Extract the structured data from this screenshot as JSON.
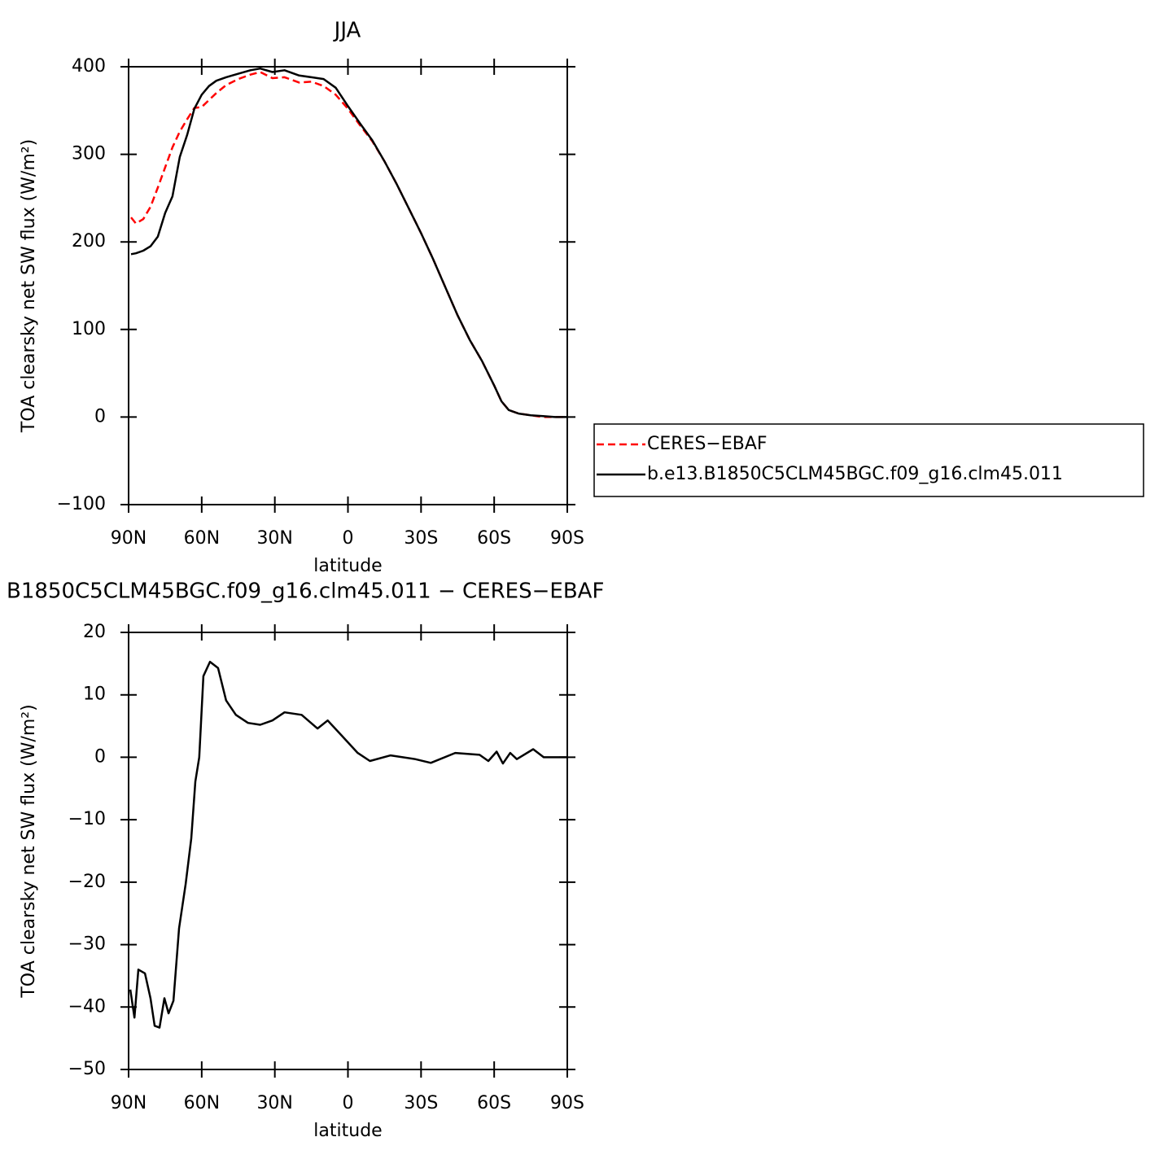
{
  "chart_data": [
    {
      "type": "line",
      "title": "JJA",
      "xlabel": "latitude",
      "ylabel": "TOA clearsky net SW flux (W/m²)",
      "x": [
        89,
        87,
        84,
        81,
        78,
        75,
        72,
        69,
        66,
        63,
        60,
        57,
        54,
        50,
        45,
        40,
        36,
        31,
        26,
        20,
        15,
        10,
        5,
        0,
        -5,
        -10,
        -15,
        -20,
        -25,
        -30,
        -35,
        -40,
        -45,
        -50,
        -55,
        -60,
        -63,
        -66,
        -70,
        -75,
        -80,
        -85,
        -90
      ],
      "series": [
        {
          "name": "CERES−EBAF",
          "color": "#ff0000",
          "dash": true,
          "values": [
            228,
            221,
            226,
            240,
            262,
            285,
            308,
            326,
            340,
            353,
            354,
            362,
            370,
            379,
            386,
            391,
            394,
            387,
            388,
            382,
            383,
            378,
            368,
            352,
            333,
            315,
            292,
            266,
            238,
            210,
            180,
            148,
            116,
            88,
            64,
            36,
            18,
            8,
            4,
            2,
            0,
            0,
            0
          ]
        },
        {
          "name": "b.e13.B1850C5CLM45BGC.f09_g16.clm45.011",
          "color": "#000000",
          "dash": false,
          "values": [
            186,
            187,
            190,
            195,
            206,
            233,
            252,
            297,
            322,
            352,
            368,
            378,
            384,
            388,
            392,
            396,
            398,
            394,
            396,
            390,
            388,
            386,
            376,
            355,
            335,
            316,
            292,
            266,
            238,
            210,
            180,
            148,
            116,
            88,
            64,
            36,
            18,
            8,
            4,
            2,
            1,
            0,
            0
          ]
        }
      ],
      "xlim": [
        90,
        -90
      ],
      "xticks": [
        {
          "value": 90,
          "label": "90N"
        },
        {
          "value": 60,
          "label": "60N"
        },
        {
          "value": 30,
          "label": "30N"
        },
        0,
        {
          "value": -30,
          "label": "30S"
        },
        {
          "value": -60,
          "label": "60S"
        },
        {
          "value": -90,
          "label": "90S"
        }
      ],
      "ylim": [
        -100,
        400
      ],
      "yticks": [
        {
          "value": -100,
          "label": "−100"
        },
        0,
        100,
        200,
        300,
        400
      ],
      "legend": "right"
    },
    {
      "type": "line",
      "title": "B1850C5CLM45BGC.f09_g16.clm45.011 − CERES−EBAF",
      "xlabel": "latitude",
      "ylabel": "TOA clearsky net SW flux (W/m²)",
      "x": [
        89.3,
        87.6,
        86,
        83.3,
        81,
        79.3,
        77.3,
        75.3,
        73.6,
        71.6,
        69.3,
        66.6,
        64.3,
        62.6,
        61,
        59.3,
        56.6,
        53.3,
        50,
        46,
        41,
        36,
        31,
        26,
        19,
        12.5,
        8.3,
        2.6,
        -4,
        -9,
        -17.5,
        -27.6,
        -34,
        -44,
        -54,
        -57.6,
        -61,
        -63.6,
        -66.6,
        -69.3,
        -76,
        -80.3,
        -90
      ],
      "series": [
        {
          "name": "difference",
          "color": "#000000",
          "dash": false,
          "values": [
            -37.2,
            -41.7,
            -34,
            -34.6,
            -38.6,
            -43,
            -43.3,
            -38.6,
            -41,
            -39,
            -27.4,
            -20.3,
            -13,
            -3.9,
            0,
            13,
            15.3,
            14.3,
            9.1,
            6.8,
            5.5,
            5.2,
            5.9,
            7.2,
            6.8,
            4.6,
            5.9,
            3.5,
            0.7,
            -0.6,
            0.3,
            -0.3,
            -0.9,
            0.7,
            0.4,
            -0.6,
            0.9,
            -1,
            0.7,
            -0.3,
            1.3,
            0,
            0
          ]
        }
      ],
      "xlim": [
        90,
        -90
      ],
      "xticks": [
        {
          "value": 90,
          "label": "90N"
        },
        {
          "value": 60,
          "label": "60N"
        },
        {
          "value": 30,
          "label": "30N"
        },
        0,
        {
          "value": -30,
          "label": "30S"
        },
        {
          "value": -60,
          "label": "60S"
        },
        {
          "value": -90,
          "label": "90S"
        }
      ],
      "ylim": [
        -50,
        20
      ],
      "yticks": [
        {
          "value": -50,
          "label": "−50"
        },
        {
          "value": -40,
          "label": "−40"
        },
        {
          "value": -30,
          "label": "−30"
        },
        {
          "value": -20,
          "label": "−20"
        },
        {
          "value": -10,
          "label": "−10"
        },
        0,
        10,
        20
      ]
    }
  ]
}
